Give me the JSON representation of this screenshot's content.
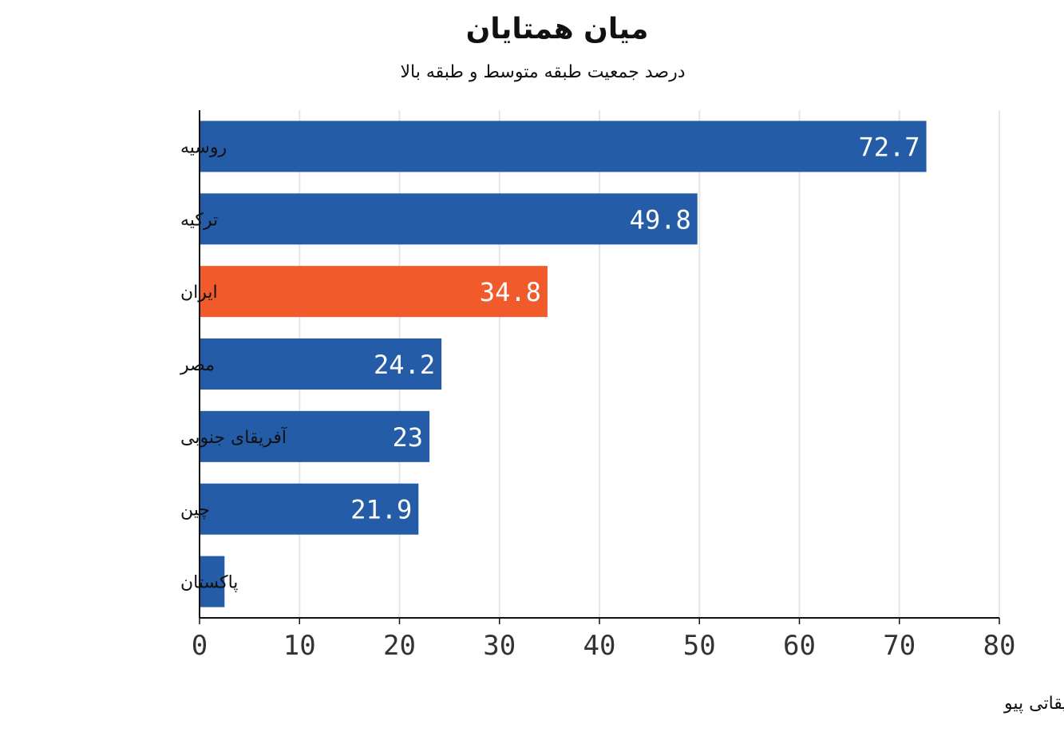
{
  "chart_data": {
    "type": "bar",
    "orientation": "horizontal",
    "title": "میان همتایان",
    "subtitle": "درصد جمعیت طبقه متوسط و طبقه بالا",
    "categories": [
      "روسیه",
      "ترکیه",
      "ایران",
      "مصر",
      "آفریقای جنوبی",
      "چین",
      "پاکستان"
    ],
    "values": [
      72.7,
      49.8,
      34.8,
      24.2,
      23,
      21.9,
      2.5
    ],
    "data_labels": [
      "72.7",
      "49.8",
      "34.8",
      "24.2",
      "23",
      "21.9",
      ""
    ],
    "highlight_index": 2,
    "xlim": [
      0,
      80
    ],
    "xticks": [
      0,
      10,
      20,
      30,
      40,
      50,
      60,
      70,
      80
    ],
    "grid": "vertical",
    "legend": "none",
    "source": "منبع: مرکز تحقیقاتی پیو",
    "colors": {
      "bar": "#255CA8",
      "highlight": "#F15A2B",
      "grid": "#E6E6E6",
      "axis": "#111111",
      "text": "#111111",
      "tick_text": "#333333",
      "value_text": "#FFFFFF"
    }
  }
}
